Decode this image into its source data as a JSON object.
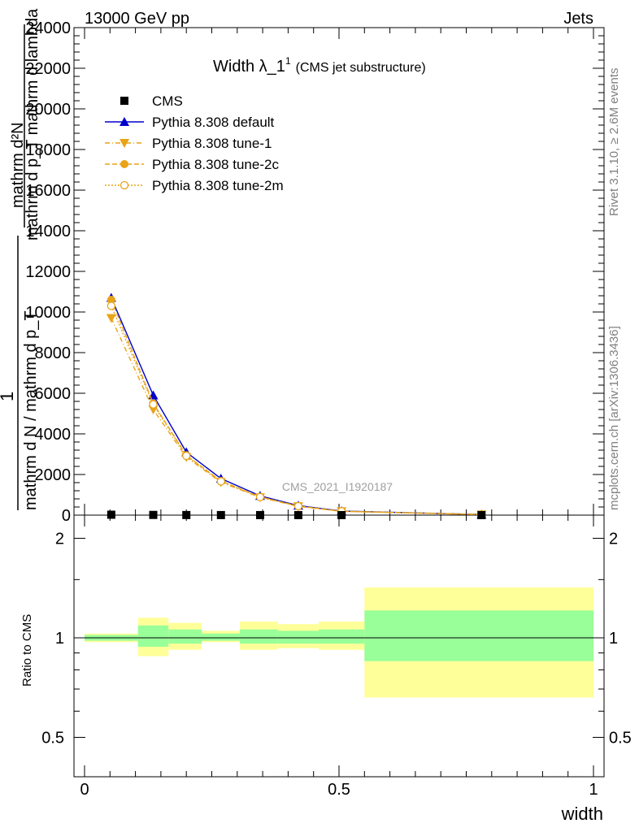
{
  "header": {
    "left": "13000 GeV pp",
    "right": "Jets"
  },
  "title_main": "Width λ_1",
  "title_sup": "1",
  "title_sub": "(CMS jet substructure)",
  "watermark": "CMS_2021_I1920187",
  "side_text_top": "Rivet 3.1.10, ≥ 2.6M events",
  "side_text_bottom": "mcplots.cern.ch [arXiv:1306.3436]",
  "ylabel_main": {
    "top_num": "mathrm d²N",
    "top_den": "mathrm d p_T mathrm d lambda",
    "one": "1",
    "bottom_den": "mathrm d N / mathrm d p_T"
  },
  "ylabel_ratio": "Ratio to CMS",
  "xlabel": "width",
  "colors": {
    "cms": "#000000",
    "default": "#0000cc",
    "tune": "#e8a317",
    "band_inner": "#99ff99",
    "band_outer": "#ffff99"
  },
  "chart_data": [
    {
      "type": "line",
      "panel": "main",
      "xlim": [
        -0.02,
        1.02
      ],
      "ylim": [
        0,
        24000
      ],
      "x_ticks": [
        0,
        0.5,
        1
      ],
      "x_tick_labels": [
        "0",
        "0.5",
        "1"
      ],
      "y_ticks": [
        0,
        2000,
        4000,
        6000,
        8000,
        10000,
        12000,
        14000,
        16000,
        18000,
        20000,
        22000,
        24000
      ],
      "y_tick_labels": [
        "0",
        "2000",
        "4000",
        "6000",
        "8000",
        "10000",
        "12000",
        "14000",
        "16000",
        "18000",
        "20000",
        "22000",
        "24000"
      ],
      "legend_position": "top-left",
      "x": [
        0.0525,
        0.135,
        0.2,
        0.268,
        0.345,
        0.42,
        0.505,
        0.78
      ],
      "series": [
        {
          "name": "CMS",
          "style": "cms",
          "values": [
            20,
            10,
            5,
            3,
            2,
            1,
            0.5,
            0.1
          ]
        },
        {
          "name": "Pythia 8.308 default",
          "style": "default",
          "values": [
            10700,
            5900,
            3100,
            1800,
            950,
            470,
            200,
            30
          ]
        },
        {
          "name": "Pythia 8.308 tune-1",
          "style": "tune1",
          "values": [
            9700,
            5200,
            2850,
            1620,
            870,
            430,
            185,
            28
          ]
        },
        {
          "name": "Pythia 8.308 tune-2c",
          "style": "tune2c",
          "values": [
            10600,
            5500,
            2950,
            1680,
            900,
            445,
            192,
            30
          ]
        },
        {
          "name": "Pythia 8.308 tune-2m",
          "style": "tune2m",
          "values": [
            10300,
            5450,
            2920,
            1660,
            890,
            440,
            190,
            29
          ]
        }
      ]
    },
    {
      "type": "area",
      "panel": "ratio",
      "xlim": [
        -0.02,
        1.02
      ],
      "ylim": [
        0.38,
        2.35
      ],
      "log_y": true,
      "y_ticks": [
        0.5,
        1,
        2
      ],
      "y_tick_labels": [
        "0.5",
        "1",
        "2"
      ],
      "x_ticks": [
        0,
        0.5,
        1
      ],
      "x_tick_labels": [
        "0",
        "0.5",
        "1"
      ],
      "bins": [
        {
          "x0": 0.0,
          "x1": 0.105,
          "inner": [
            0.98,
            1.02
          ],
          "outer": [
            0.97,
            1.03
          ]
        },
        {
          "x0": 0.105,
          "x1": 0.165,
          "inner": [
            0.94,
            1.09
          ],
          "outer": [
            0.88,
            1.15
          ]
        },
        {
          "x0": 0.165,
          "x1": 0.23,
          "inner": [
            0.96,
            1.06
          ],
          "outer": [
            0.92,
            1.11
          ]
        },
        {
          "x0": 0.23,
          "x1": 0.305,
          "inner": [
            0.98,
            1.03
          ],
          "outer": [
            0.97,
            1.05
          ]
        },
        {
          "x0": 0.305,
          "x1": 0.38,
          "inner": [
            0.96,
            1.06
          ],
          "outer": [
            0.92,
            1.12
          ]
        },
        {
          "x0": 0.38,
          "x1": 0.46,
          "inner": [
            0.96,
            1.05
          ],
          "outer": [
            0.93,
            1.1
          ]
        },
        {
          "x0": 0.46,
          "x1": 0.55,
          "inner": [
            0.96,
            1.06
          ],
          "outer": [
            0.92,
            1.12
          ]
        },
        {
          "x0": 0.55,
          "x1": 1.0,
          "inner": [
            0.85,
            1.21
          ],
          "outer": [
            0.66,
            1.42
          ]
        }
      ],
      "reference": 1
    }
  ]
}
